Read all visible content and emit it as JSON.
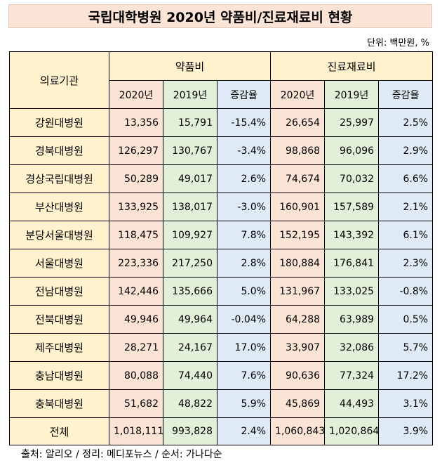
{
  "title": "국립대학병원 2020년 약품비/진료재료비 현황",
  "unit": "단위: 백만원, %",
  "headers": {
    "institution": "의료기관",
    "drug_cost": "약품비",
    "material_cost": "진료재료비",
    "y2020": "2020년",
    "y2019": "2019년",
    "rate": "증감율"
  },
  "rows": [
    {
      "name": "강원대병원",
      "drug_2020": "13,356",
      "drug_2019": "15,791",
      "drug_rate": "-15.4%",
      "mat_2020": "26,654",
      "mat_2019": "25,997",
      "mat_rate": "2.5%"
    },
    {
      "name": "경북대병원",
      "drug_2020": "126,297",
      "drug_2019": "130,767",
      "drug_rate": "-3.4%",
      "mat_2020": "98,868",
      "mat_2019": "96,096",
      "mat_rate": "2.9%"
    },
    {
      "name": "경상국립대병원",
      "drug_2020": "50,289",
      "drug_2019": "49,017",
      "drug_rate": "2.6%",
      "mat_2020": "74,674",
      "mat_2019": "70,032",
      "mat_rate": "6.6%"
    },
    {
      "name": "부산대병원",
      "drug_2020": "133,925",
      "drug_2019": "138,017",
      "drug_rate": "-3.0%",
      "mat_2020": "160,901",
      "mat_2019": "157,589",
      "mat_rate": "2.1%"
    },
    {
      "name": "분당서울대병원",
      "drug_2020": "118,475",
      "drug_2019": "109,927",
      "drug_rate": "7.8%",
      "mat_2020": "152,195",
      "mat_2019": "143,392",
      "mat_rate": "6.1%"
    },
    {
      "name": "서울대병원",
      "drug_2020": "223,336",
      "drug_2019": "217,250",
      "drug_rate": "2.8%",
      "mat_2020": "180,884",
      "mat_2019": "176,841",
      "mat_rate": "2.3%"
    },
    {
      "name": "전남대병원",
      "drug_2020": "142,446",
      "drug_2019": "135,666",
      "drug_rate": "5.0%",
      "mat_2020": "131,967",
      "mat_2019": "133,025",
      "mat_rate": "-0.8%"
    },
    {
      "name": "전북대병원",
      "drug_2020": "49,946",
      "drug_2019": "49,964",
      "drug_rate": "-0.04%",
      "mat_2020": "64,288",
      "mat_2019": "63,989",
      "mat_rate": "0.5%"
    },
    {
      "name": "제주대병원",
      "drug_2020": "28,271",
      "drug_2019": "24,167",
      "drug_rate": "17.0%",
      "mat_2020": "33,907",
      "mat_2019": "32,086",
      "mat_rate": "5.7%"
    },
    {
      "name": "충남대병원",
      "drug_2020": "80,088",
      "drug_2019": "74,440",
      "drug_rate": "7.6%",
      "mat_2020": "90,636",
      "mat_2019": "77,324",
      "mat_rate": "17.2%"
    },
    {
      "name": "충북대병원",
      "drug_2020": "51,682",
      "drug_2019": "48,822",
      "drug_rate": "5.9%",
      "mat_2020": "45,869",
      "mat_2019": "44,493",
      "mat_rate": "3.1%"
    }
  ],
  "total": {
    "name": "전체",
    "drug_2020": "1,018,111",
    "drug_2019": "993,828",
    "drug_rate": "2.4%",
    "mat_2020": "1,060,843",
    "mat_2019": "1,020,864",
    "mat_rate": "3.9%"
  },
  "source": "출처: 알리오 / 정리: 메디포뉴스 / 순서: 가나다순",
  "colors": {
    "title_bg": "#fbe4d5",
    "name_col": "#fff2cc",
    "col_2020": "#fbe4d5",
    "col_2019": "#e2efd9",
    "col_rate": "#deeaf6"
  }
}
